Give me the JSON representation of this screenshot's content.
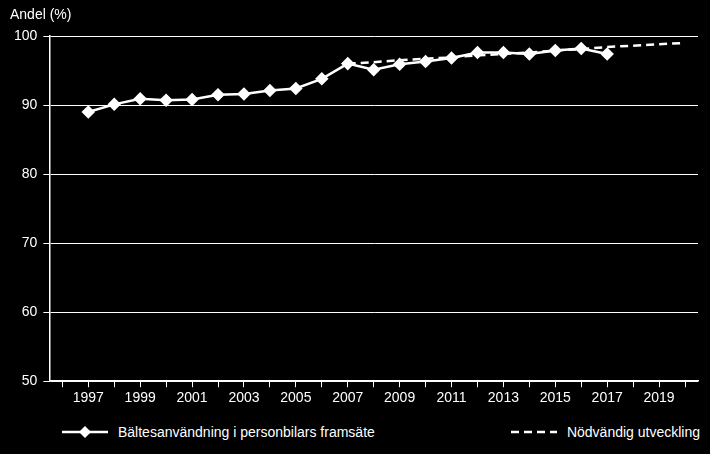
{
  "chart_data": {
    "type": "line",
    "y_label": "Andel (%)",
    "categories": [
      null,
      "1997",
      null,
      "1999",
      null,
      "2001",
      null,
      "2003",
      null,
      "2005",
      null,
      "2007",
      null,
      "2009",
      null,
      "2011",
      null,
      "2013",
      null,
      "2015",
      null,
      "2017",
      null,
      "2019",
      null
    ],
    "series": [
      {
        "name": "Bältesanvändning i personbilars framsäte",
        "color": "#ffffff",
        "marker": "diamond",
        "line_style": "solid",
        "values": [
          null,
          89.0,
          90.1,
          90.9,
          90.7,
          90.8,
          91.5,
          91.6,
          92.1,
          92.4,
          93.8,
          96.0,
          95.1,
          95.9,
          96.3,
          96.8,
          97.6,
          97.6,
          97.4,
          97.9,
          98.2,
          97.4,
          null,
          null,
          null
        ]
      },
      {
        "name": "Nödvändig utveckling",
        "color": "#ffffff",
        "marker": "none",
        "line_style": "dashed",
        "values": [
          null,
          null,
          null,
          null,
          null,
          null,
          null,
          null,
          null,
          null,
          null,
          96.0,
          96.2,
          96.5,
          96.7,
          96.9,
          97.2,
          97.4,
          97.6,
          97.9,
          98.1,
          98.4,
          98.6,
          98.8,
          99.0
        ]
      }
    ],
    "ylim": [
      50,
      100
    ],
    "yticks": [
      50,
      60,
      70,
      80,
      90,
      100
    ],
    "grid": true,
    "legend": "bottom"
  }
}
